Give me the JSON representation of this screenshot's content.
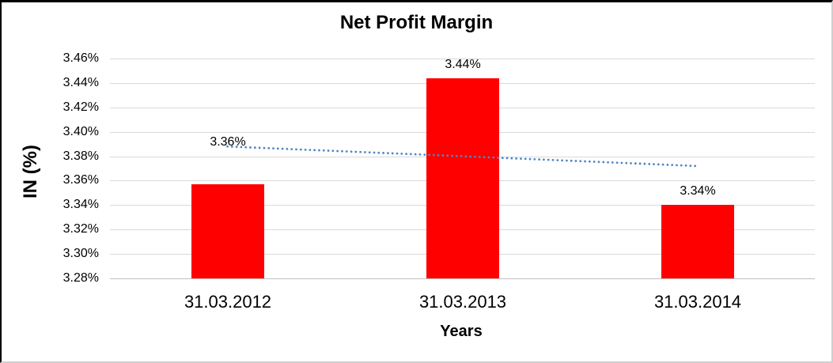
{
  "chart_data": {
    "type": "bar",
    "title": "Net Profit Margin",
    "xlabel": "Years",
    "ylabel": "IN (%)",
    "categories": [
      "31.03.2012",
      "31.03.2013",
      "31.03.2014"
    ],
    "series": [
      {
        "name": "Net Profit Margin",
        "values": [
          3.357,
          3.444,
          3.34
        ],
        "data_labels": [
          "3.36%",
          "3.44%",
          "3.34%"
        ],
        "color": "#ff0000"
      }
    ],
    "trendline": {
      "style": "dotted",
      "color": "#4f86c5",
      "start_value": 3.388,
      "end_value": 3.372
    },
    "y_axis": {
      "min": 3.28,
      "max": 3.46,
      "step": 0.02,
      "tick_labels": [
        "3.46%",
        "3.44%",
        "3.42%",
        "3.40%",
        "3.38%",
        "3.36%",
        "3.34%",
        "3.32%",
        "3.30%",
        "3.28%"
      ]
    },
    "x_axis_line_color": "#bfbfbf",
    "grid": true,
    "gridline_color": "#d9d9d9",
    "legend": "none",
    "plot_background": "#ffffff"
  }
}
